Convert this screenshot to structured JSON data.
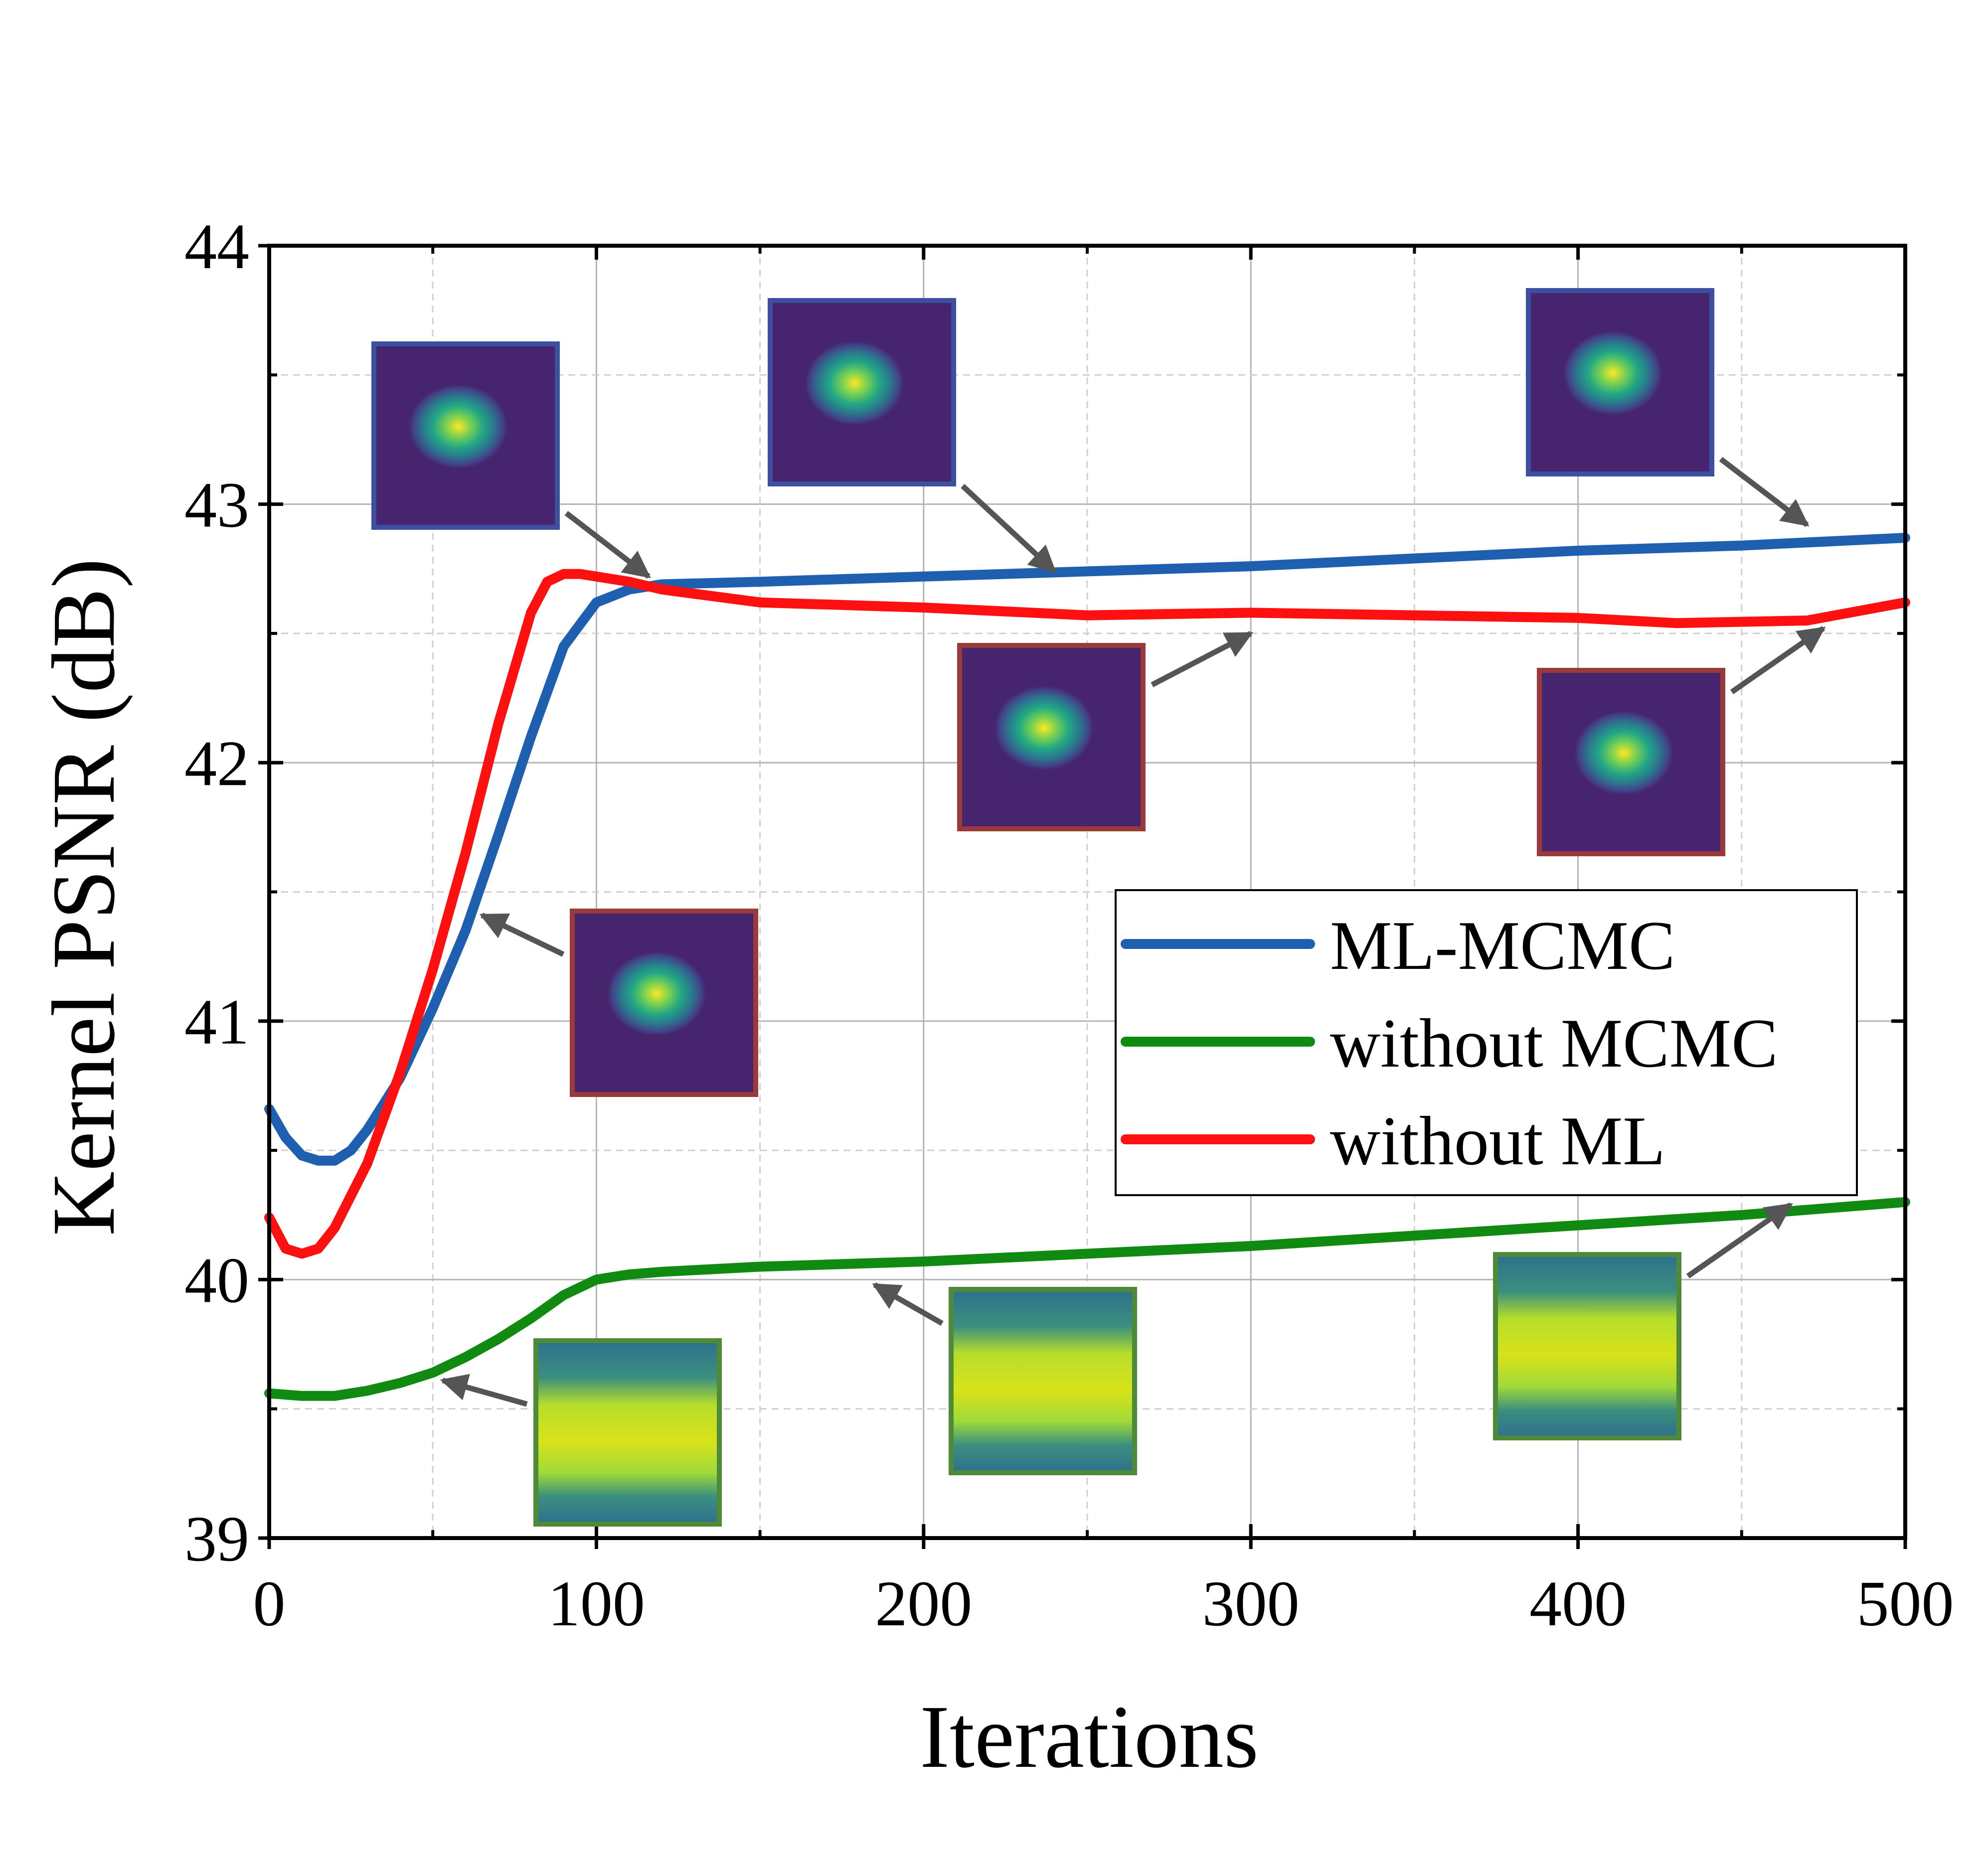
{
  "chart_data": {
    "type": "line",
    "title": "",
    "xlabel": "Iterations",
    "ylabel": "Kernel PSNR (dB)",
    "xlim": [
      0,
      500
    ],
    "ylim": [
      39,
      44
    ],
    "xticks": [
      0,
      100,
      200,
      300,
      400,
      500
    ],
    "yticks": [
      39,
      40,
      41,
      42,
      43,
      44
    ],
    "grid": true,
    "legend_position": "center-right",
    "series": [
      {
        "name": "ML-MCMC",
        "color": "#1f5fb0",
        "x": [
          0,
          5,
          10,
          15,
          20,
          25,
          30,
          40,
          50,
          60,
          70,
          80,
          90,
          100,
          110,
          120,
          150,
          200,
          250,
          300,
          350,
          400,
          450,
          500
        ],
        "y": [
          40.66,
          40.55,
          40.48,
          40.46,
          40.46,
          40.5,
          40.58,
          40.78,
          41.05,
          41.35,
          41.72,
          42.1,
          42.45,
          42.62,
          42.67,
          42.69,
          42.7,
          42.72,
          42.74,
          42.76,
          42.79,
          42.82,
          42.84,
          42.87
        ]
      },
      {
        "name": "without MCMC",
        "color": "#118a11",
        "x": [
          0,
          10,
          20,
          30,
          40,
          50,
          60,
          70,
          80,
          90,
          100,
          110,
          120,
          150,
          200,
          250,
          300,
          350,
          400,
          450,
          500
        ],
        "y": [
          39.56,
          39.55,
          39.55,
          39.57,
          39.6,
          39.64,
          39.7,
          39.77,
          39.85,
          39.94,
          40.0,
          40.02,
          40.03,
          40.05,
          40.07,
          40.1,
          40.13,
          40.17,
          40.21,
          40.25,
          40.3
        ]
      },
      {
        "name": "without ML",
        "color": "#ff1010",
        "x": [
          0,
          5,
          10,
          15,
          20,
          30,
          40,
          50,
          60,
          70,
          80,
          85,
          90,
          95,
          100,
          110,
          120,
          150,
          200,
          250,
          300,
          350,
          400,
          430,
          470,
          500
        ],
        "y": [
          40.24,
          40.12,
          40.1,
          40.12,
          40.2,
          40.45,
          40.8,
          41.2,
          41.65,
          42.15,
          42.58,
          42.7,
          42.73,
          42.73,
          42.72,
          42.7,
          42.67,
          42.62,
          42.6,
          42.57,
          42.58,
          42.57,
          42.56,
          42.54,
          42.55,
          42.62
        ]
      }
    ]
  },
  "insets": [
    {
      "kind": "blob",
      "series": "ML-MCMC",
      "border": "#3d4fa0",
      "target_x": 116,
      "target_y": 42.72
    },
    {
      "kind": "blob",
      "series": "ML-MCMC",
      "border": "#3d4fa0",
      "target_x": 240,
      "target_y": 42.74
    },
    {
      "kind": "blob",
      "series": "ML-MCMC",
      "border": "#3d4fa0",
      "target_x": 470,
      "target_y": 42.92
    },
    {
      "kind": "blob",
      "series": "without ML",
      "border": "#9b3a3a",
      "target_x": 300,
      "target_y": 42.5
    },
    {
      "kind": "blob",
      "series": "without ML",
      "border": "#9b3a3a",
      "target_x": 475,
      "target_y": 42.52
    },
    {
      "kind": "blob",
      "series": "without ML",
      "border": "#9b3a3a",
      "target_x": 65,
      "target_y": 41.41
    },
    {
      "kind": "band",
      "series": "without MCMC",
      "border": "#4e8a38",
      "target_x": 53,
      "target_y": 39.61
    },
    {
      "kind": "band",
      "series": "without MCMC",
      "border": "#4e8a38",
      "target_x": 185,
      "target_y": 39.98
    },
    {
      "kind": "band",
      "series": "without MCMC",
      "border": "#4e8a38",
      "target_x": 465,
      "target_y": 40.29
    }
  ]
}
